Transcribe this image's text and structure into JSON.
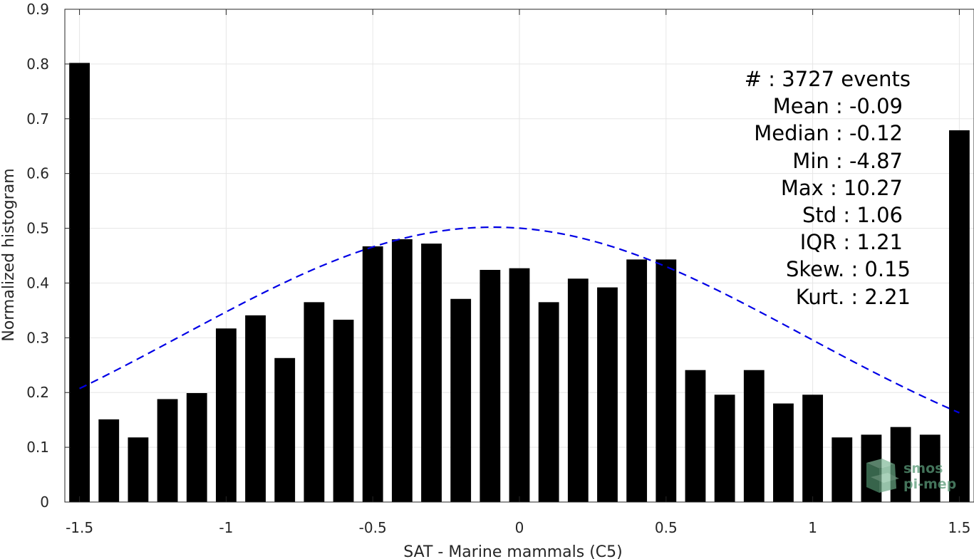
{
  "chart_data": {
    "type": "bar",
    "title": "",
    "xlabel": "SAT - Marine mammals (C5)",
    "ylabel": "Normalized histogram",
    "xlim": [
      -1.55,
      1.55
    ],
    "ylim": [
      0,
      0.9
    ],
    "grid": true,
    "x_ticks": [
      -1.5,
      -1,
      -0.5,
      0,
      0.5,
      1,
      1.5
    ],
    "x_tick_labels": [
      "-1.5",
      "-1",
      "-0.5",
      "0",
      "0.5",
      "1",
      "1.5"
    ],
    "y_ticks": [
      0,
      0.1,
      0.2,
      0.3,
      0.4,
      0.5,
      0.6,
      0.7,
      0.8,
      0.9
    ],
    "y_tick_labels": [
      "0",
      "0.1",
      "0.2",
      "0.3",
      "0.4",
      "0.5",
      "0.6",
      "0.7",
      "0.8",
      "0.9"
    ],
    "bar_width": 0.07,
    "x": [
      -1.5,
      -1.4,
      -1.3,
      -1.2,
      -1.1,
      -1.0,
      -0.9,
      -0.8,
      -0.7,
      -0.6,
      -0.5,
      -0.4,
      -0.3,
      -0.2,
      -0.1,
      0.0,
      0.1,
      0.2,
      0.3,
      0.4,
      0.5,
      0.6,
      0.7,
      0.8,
      0.9,
      1.0,
      1.1,
      1.2,
      1.3,
      1.4,
      1.5
    ],
    "values": [
      0.802,
      0.151,
      0.118,
      0.188,
      0.199,
      0.317,
      0.341,
      0.263,
      0.365,
      0.333,
      0.467,
      0.48,
      0.472,
      0.371,
      0.424,
      0.427,
      0.365,
      0.408,
      0.392,
      0.443,
      0.443,
      0.241,
      0.196,
      0.241,
      0.18,
      0.196,
      0.118,
      0.123,
      0.137,
      0.123,
      0.679
    ],
    "bar_color": "#000000",
    "fit_curve": {
      "style": "dashed",
      "color": "#0000e6",
      "mean": -0.09,
      "std": 1.06,
      "peak": 0.502,
      "x_range": [
        -1.5,
        1.5
      ]
    },
    "stats_box": {
      "placement": "top-right",
      "lines": [
        "#  : 3727 events",
        "Mean : -0.09",
        "Median : -0.12",
        "Min : -4.87",
        "Max : 10.27",
        "Std : 1.06",
        "IQR : 1.21",
        "Skew. : 0.15",
        "Kurt. : 2.21"
      ]
    },
    "watermark": {
      "line1": "smos",
      "line2": "pi-mep"
    }
  }
}
